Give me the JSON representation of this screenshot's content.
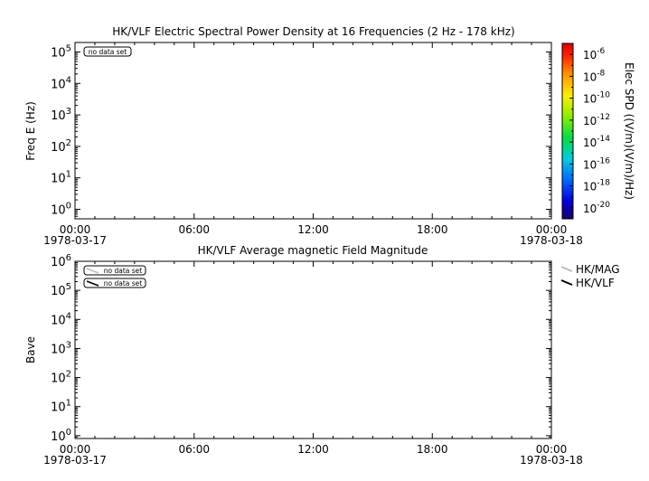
{
  "chart_data": [
    {
      "type": "heatmap",
      "title": "HK/VLF  Electric Spectral Power Density at 16 Frequencies (2 Hz - 178 kHz)",
      "ylabel": "Freq E (Hz)",
      "yscale": "log",
      "ylim": [
        0.5,
        200000
      ],
      "yticks": [
        {
          "base": "10",
          "exp": "0",
          "value": 1
        },
        {
          "base": "10",
          "exp": "1",
          "value": 10
        },
        {
          "base": "10",
          "exp": "2",
          "value": 100
        },
        {
          "base": "10",
          "exp": "3",
          "value": 1000
        },
        {
          "base": "10",
          "exp": "4",
          "value": 10000
        },
        {
          "base": "10",
          "exp": "5",
          "value": 100000
        }
      ],
      "xlim_hours": [
        0,
        24
      ],
      "xticks": [
        {
          "label": "00:00",
          "hour": 0
        },
        {
          "label": "06:00",
          "hour": 6
        },
        {
          "label": "12:00",
          "hour": 12
        },
        {
          "label": "18:00",
          "hour": 18
        },
        {
          "label": "00:00",
          "hour": 24
        }
      ],
      "date_start": "1978-03-17",
      "date_end": "1978-03-18",
      "annotations": [
        "no data set"
      ],
      "colorbar": {
        "label": "Elec SPD ((V/m)(V/m)/Hz)",
        "scale": "log",
        "range_exp": [
          -21,
          -5
        ],
        "ticks": [
          {
            "base": "10",
            "exp": "-6",
            "value_exp": -6
          },
          {
            "base": "10",
            "exp": "-8",
            "value_exp": -8
          },
          {
            "base": "10",
            "exp": "-10",
            "value_exp": -10
          },
          {
            "base": "10",
            "exp": "-12",
            "value_exp": -12
          },
          {
            "base": "10",
            "exp": "-14",
            "value_exp": -14
          },
          {
            "base": "10",
            "exp": "-16",
            "value_exp": -16
          },
          {
            "base": "10",
            "exp": "-18",
            "value_exp": -18
          },
          {
            "base": "10",
            "exp": "-20",
            "value_exp": -20
          }
        ]
      },
      "data": []
    },
    {
      "type": "line",
      "title": "HK/VLF  Average magnetic Field Magnitude",
      "ylabel": "Bave",
      "yscale": "log",
      "ylim": [
        0.8,
        1000000
      ],
      "yticks": [
        {
          "base": "10",
          "exp": "0",
          "value": 1
        },
        {
          "base": "10",
          "exp": "1",
          "value": 10
        },
        {
          "base": "10",
          "exp": "2",
          "value": 100
        },
        {
          "base": "10",
          "exp": "3",
          "value": 1000
        },
        {
          "base": "10",
          "exp": "4",
          "value": 10000
        },
        {
          "base": "10",
          "exp": "5",
          "value": 100000
        },
        {
          "base": "10",
          "exp": "6",
          "value": 1000000
        }
      ],
      "xlim_hours": [
        0,
        24
      ],
      "xticks": [
        {
          "label": "00:00",
          "hour": 0
        },
        {
          "label": "06:00",
          "hour": 6
        },
        {
          "label": "12:00",
          "hour": 12
        },
        {
          "label": "18:00",
          "hour": 18
        },
        {
          "label": "00:00",
          "hour": 24
        }
      ],
      "date_start": "1978-03-17",
      "date_end": "1978-03-18",
      "series": [
        {
          "name": "HK/MAG",
          "color": "#bbbbbb",
          "annotation": "no data set",
          "values": []
        },
        {
          "name": "HK/VLF",
          "color": "#000000",
          "annotation": "no data set",
          "values": []
        }
      ]
    }
  ]
}
